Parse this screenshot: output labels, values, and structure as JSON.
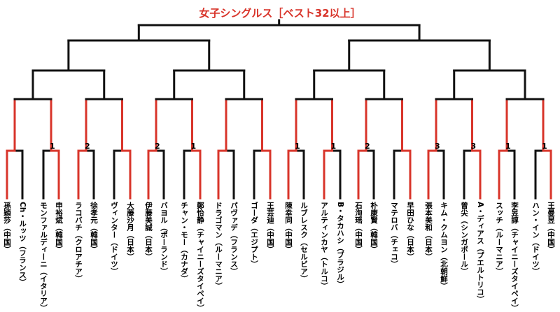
{
  "title": "女子シングルス［ベスト32以上］",
  "colors": {
    "winner": "#d8342a",
    "loser": "#111111",
    "title": "#d8342a"
  },
  "players": [
    "孫穎莎（中国）",
    "Ch・ルッツ（フランス）",
    "モンファルディーニ（イタリア）",
    "申裕斌（韓国）",
    "ラコバチ（クロアチア）",
    "徐孝元（韓国）",
    "ヴィンター（ドイツ）",
    "大藤沙月（日本）",
    "伊藤美誠（日本）",
    "バヨル（ポーランド）",
    "チャン・モー（カナダ）",
    "鄭怡静（チャイニーズタイペイ）",
    "ドラゴマン（ルーマニア）",
    "パヴァデ（フランス）",
    "ゴーダ（エジプト）",
    "王芸迪（中国）",
    "陳幸同（中国）",
    "ルブレスク（セルビア）",
    "アルティンカヤ（トルコ）",
    "B・タカハシ（ブラジル）",
    "石洵瑶（中国）",
    "朴康賢（韓国）",
    "マテロバ（チェコ）",
    "早田ひな（日本）",
    "張本美和（日本）",
    "キム・クムヨン（北朝鮮）",
    "曾尖（シンガポール）",
    "A・ディアス（プエルトリコ）",
    "スッチ（ルーマニア）",
    "李昱諄（チャイニーズタイペイ）",
    "ハン・イン（ドイツ）",
    "王曼昱（中国）"
  ],
  "r32_winners": [
    0,
    3,
    4,
    7,
    8,
    11,
    12,
    15,
    16,
    18,
    20,
    23,
    24,
    27,
    28,
    31
  ],
  "r32_sets": [
    null,
    "1",
    "2",
    null,
    "2",
    "1",
    null,
    null,
    "1",
    "1",
    "2",
    null,
    "3",
    "3",
    "1",
    "1"
  ]
}
